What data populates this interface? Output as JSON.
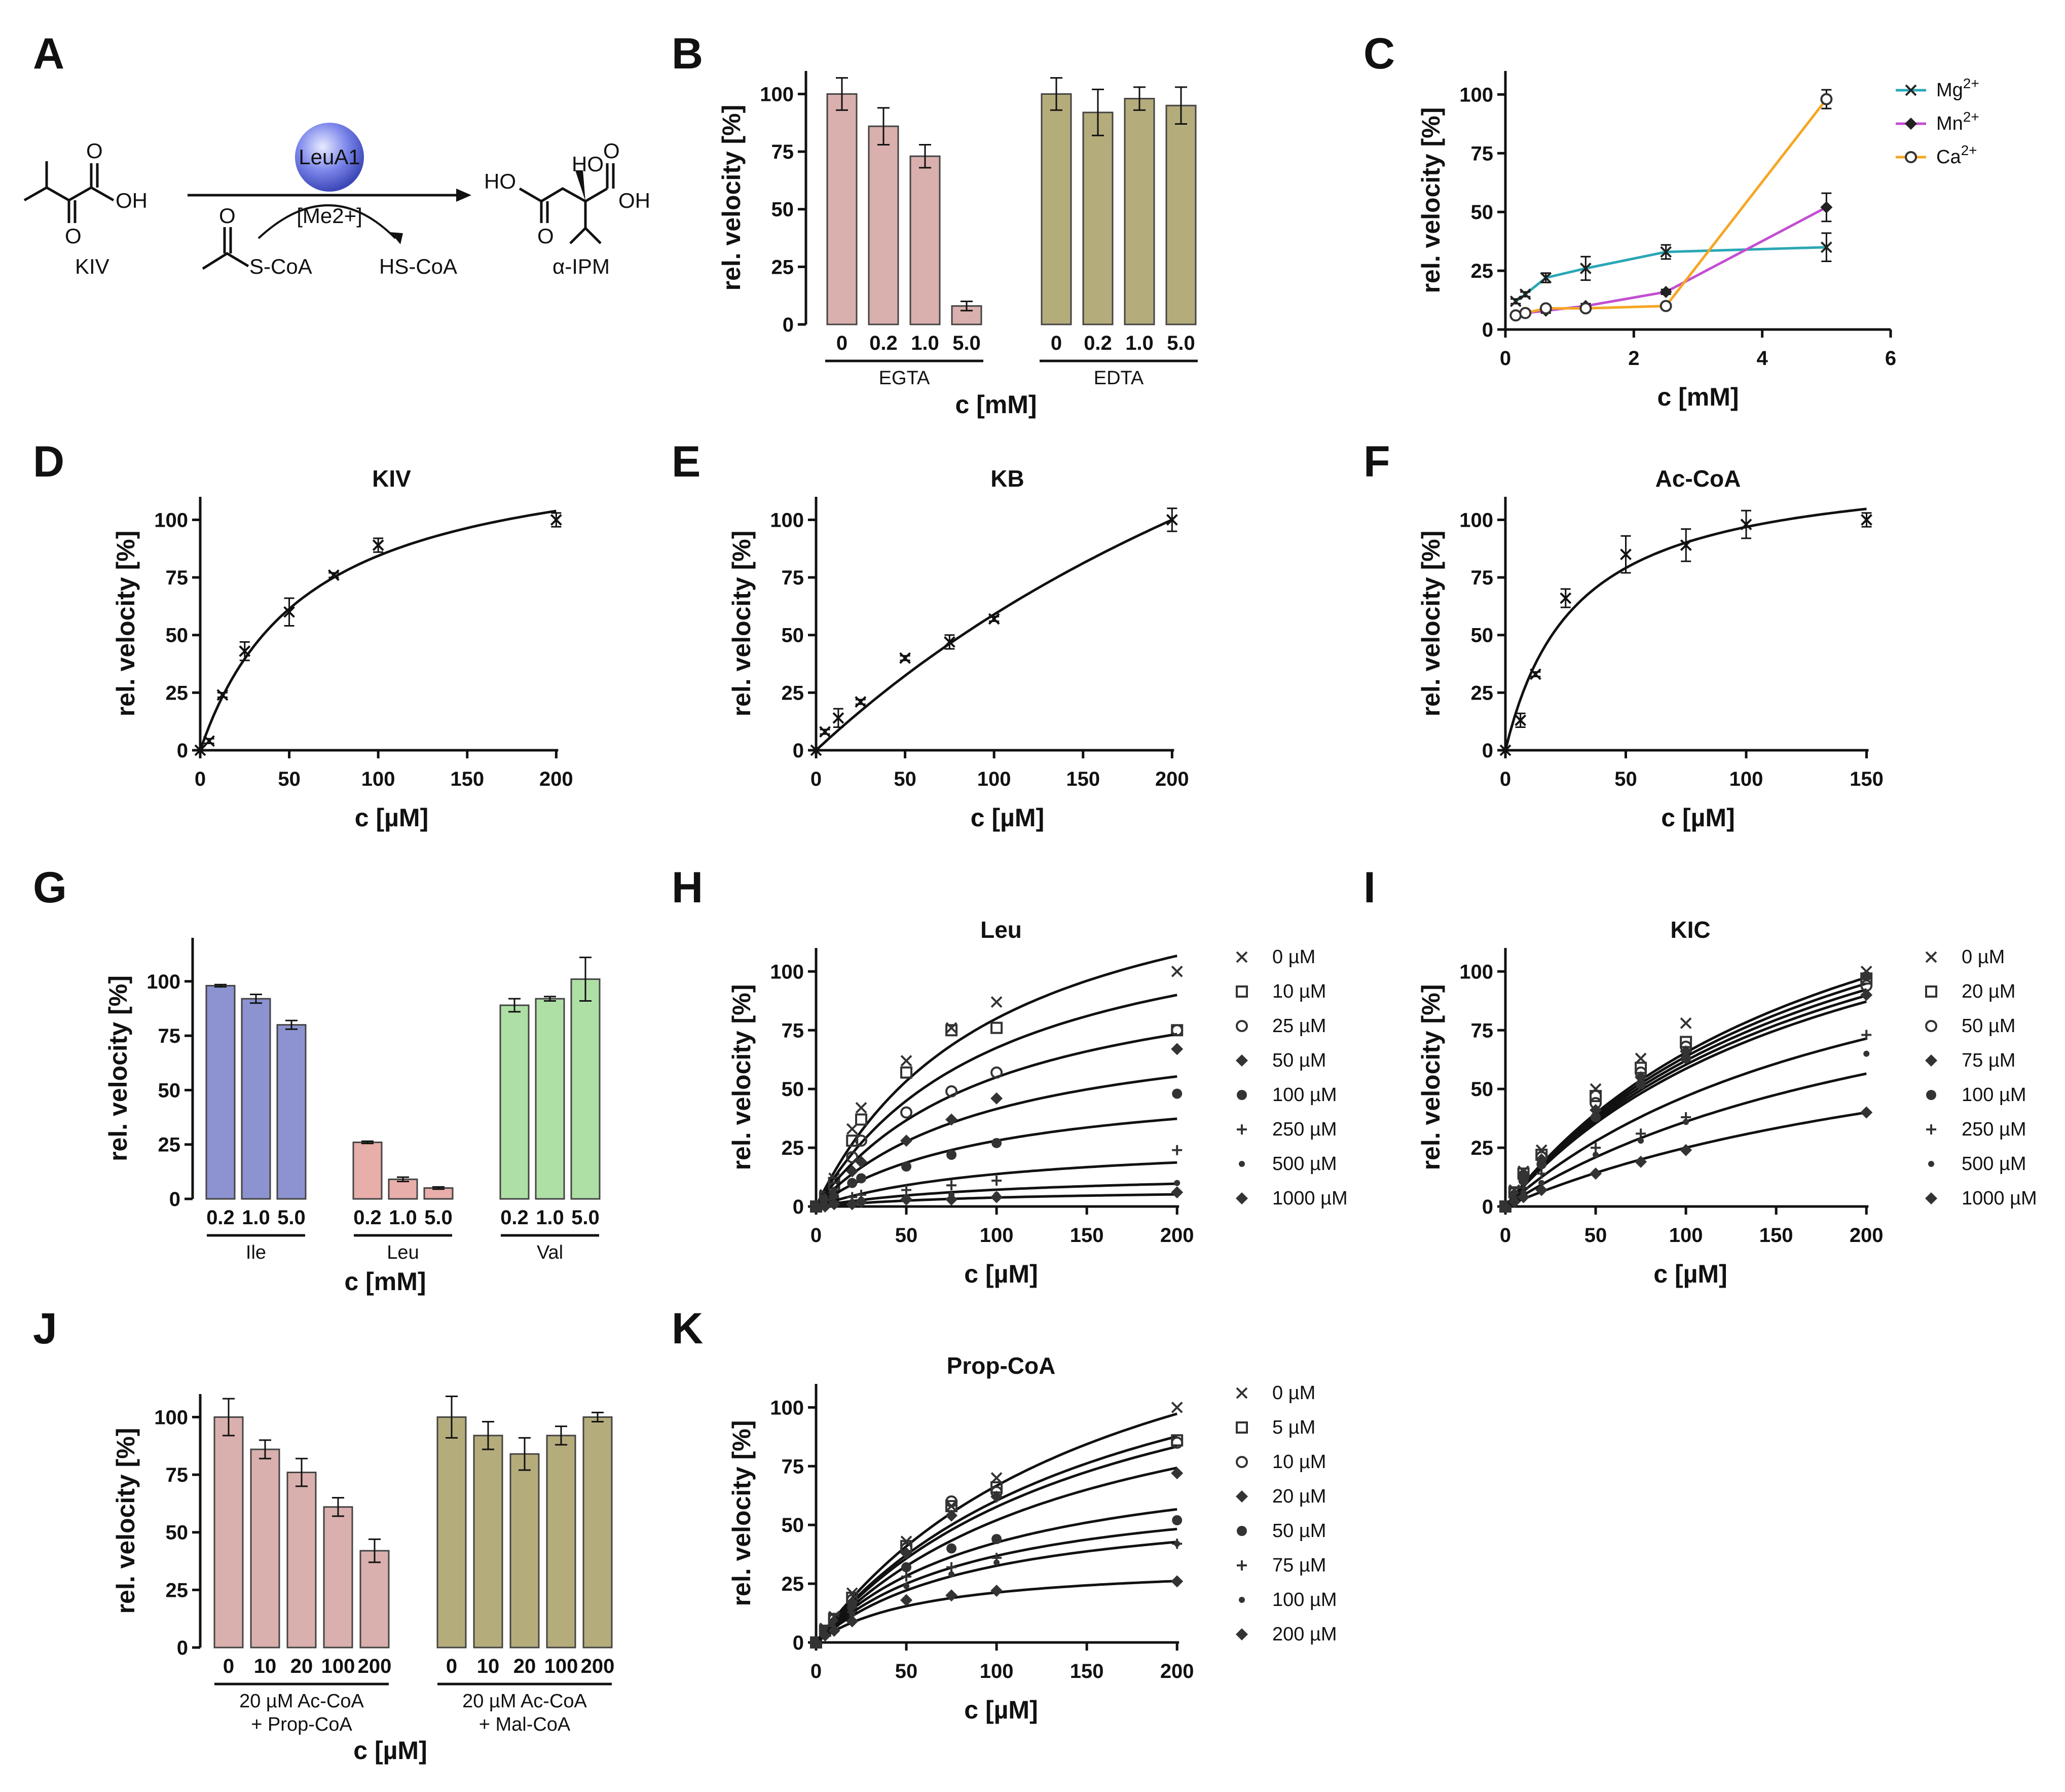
{
  "figure": {
    "scheme": {
      "label": "A",
      "enzyme": "LeuA1",
      "cofactor": "[Me2+]",
      "substrate": "KIV",
      "cosubstrate": "S-CoA",
      "byproduct": "HS-CoA",
      "product": "α-IPM",
      "atom_O": "O",
      "atom_OH": "OH",
      "atom_HO": "HO"
    }
  },
  "chart_data": [
    {
      "id": "B",
      "type": "bar",
      "ylabel": "rel. velocity [%]",
      "xlabel": "c [mM]",
      "ylim": [
        0,
        110
      ],
      "yticks": [
        0,
        25,
        50,
        75,
        100
      ],
      "groups": [
        {
          "name": "EGTA",
          "color": "#d9b0ad",
          "categories": [
            "0",
            "0.2",
            "1.0",
            "5.0"
          ],
          "values": [
            100,
            86,
            73,
            8
          ],
          "errors": [
            7,
            8,
            5,
            2
          ]
        },
        {
          "name": "EDTA",
          "color": "#b5ac7c",
          "categories": [
            "0",
            "0.2",
            "1.0",
            "5.0"
          ],
          "values": [
            100,
            92,
            98,
            95
          ],
          "errors": [
            7,
            10,
            5,
            8
          ]
        }
      ]
    },
    {
      "id": "C",
      "type": "line",
      "ylabel": "rel. velocity [%]",
      "xlabel": "c [mM]",
      "xlim": [
        0,
        6
      ],
      "ylim": [
        0,
        110
      ],
      "xticks": [
        0,
        2,
        4,
        6
      ],
      "yticks": [
        0,
        25,
        50,
        75,
        100
      ],
      "legend_position": "top-right",
      "series": [
        {
          "name": "Mg",
          "sup": "2+",
          "color": "#2aa7b5",
          "marker": "x",
          "x": [
            0.16,
            0.31,
            0.63,
            1.25,
            2.5,
            5.0
          ],
          "y": [
            12,
            15,
            22,
            26,
            33,
            35
          ],
          "err": [
            1,
            1,
            2,
            5,
            3,
            6
          ]
        },
        {
          "name": "Mn",
          "sup": "2+",
          "color": "#c24fd1",
          "marker": "diamond",
          "x": [
            0.16,
            0.31,
            0.63,
            1.25,
            2.5,
            5.0
          ],
          "y": [
            6,
            7,
            8,
            10,
            16,
            52
          ],
          "err": [
            1,
            1,
            1,
            1,
            1,
            6
          ]
        },
        {
          "name": "Ca",
          "sup": "2+",
          "color": "#f5a623",
          "marker": "circle",
          "x": [
            0.16,
            0.31,
            0.63,
            1.25,
            2.5,
            5.0
          ],
          "y": [
            6,
            7,
            9,
            9,
            10,
            98
          ],
          "err": [
            1,
            1,
            1,
            1,
            1,
            4
          ]
        }
      ]
    },
    {
      "id": "D",
      "type": "scatter",
      "title": "KIV",
      "ylabel": "rel. velocity [%]",
      "xlabel": "c [µM]",
      "xlim": [
        0,
        215
      ],
      "ylim": [
        0,
        110
      ],
      "xticks": [
        0,
        50,
        100,
        150,
        200
      ],
      "yticks": [
        0,
        25,
        50,
        75,
        100
      ],
      "points": {
        "x": [
          0,
          5,
          12.5,
          25,
          50,
          75,
          100,
          200
        ],
        "y": [
          0,
          4,
          24,
          43,
          60,
          76,
          89,
          100
        ],
        "err": [
          0,
          1,
          1,
          4,
          6,
          1,
          3,
          3
        ]
      },
      "fit": {
        "model": "michaelis-menten",
        "vmax": 135,
        "km": 60
      }
    },
    {
      "id": "E",
      "type": "scatter",
      "title": "KB",
      "ylabel": "rel. velocity [%]",
      "xlabel": "c [µM]",
      "xlim": [
        0,
        215
      ],
      "ylim": [
        0,
        110
      ],
      "xticks": [
        0,
        50,
        100,
        150,
        200
      ],
      "yticks": [
        0,
        25,
        50,
        75,
        100
      ],
      "points": {
        "x": [
          0,
          5,
          12.5,
          25,
          50,
          75,
          100,
          200
        ],
        "y": [
          0,
          8,
          14,
          21,
          40,
          47,
          57,
          100
        ],
        "err": [
          0,
          1,
          4,
          1,
          1,
          3,
          1,
          5
        ]
      },
      "fit": {
        "model": "michaelis-menten",
        "vmax": 330,
        "km": 460
      }
    },
    {
      "id": "F",
      "type": "scatter",
      "title": "Ac-CoA",
      "ylabel": "rel. velocity [%]",
      "xlabel": "c [µM]",
      "xlim": [
        0,
        160
      ],
      "ylim": [
        0,
        110
      ],
      "xticks": [
        0,
        50,
        100,
        150
      ],
      "yticks": [
        0,
        25,
        50,
        75,
        100
      ],
      "points": {
        "x": [
          0,
          6.25,
          12.5,
          25,
          50,
          75,
          100,
          150
        ],
        "y": [
          0,
          13,
          33,
          66,
          85,
          89,
          98,
          100
        ],
        "err": [
          0,
          3,
          1,
          4,
          8,
          7,
          6,
          3
        ]
      },
      "fit": {
        "model": "michaelis-menten",
        "vmax": 125,
        "km": 29
      }
    },
    {
      "id": "G",
      "type": "bar",
      "ylabel": "rel. velocity [%]",
      "xlabel": "c [mM]",
      "ylim": [
        0,
        120
      ],
      "yticks": [
        0,
        25,
        50,
        75,
        100
      ],
      "groups": [
        {
          "name": "Ile",
          "color": "#8c93d0",
          "categories": [
            "0.2",
            "1.0",
            "5.0"
          ],
          "values": [
            98,
            92,
            80
          ],
          "errors": [
            0.5,
            2,
            2
          ]
        },
        {
          "name": "Leu",
          "color": "#e8aeaa",
          "categories": [
            "0.2",
            "1.0",
            "5.0"
          ],
          "values": [
            26,
            9,
            5
          ],
          "errors": [
            0.5,
            1,
            0.5
          ]
        },
        {
          "name": "Val",
          "color": "#aee0a6",
          "categories": [
            "0.2",
            "1.0",
            "5.0"
          ],
          "values": [
            89,
            92,
            101
          ],
          "errors": [
            3,
            1,
            10
          ]
        }
      ]
    },
    {
      "id": "H",
      "type": "scatter",
      "title": "Leu",
      "ylabel": "rel. velocity [%]",
      "xlabel": "c [µM]",
      "xlim": [
        0,
        205
      ],
      "ylim": [
        0,
        110
      ],
      "xticks": [
        0,
        50,
        100,
        150,
        200
      ],
      "yticks": [
        0,
        25,
        50,
        75,
        100
      ],
      "x": [
        0,
        5,
        10,
        20,
        25,
        50,
        75,
        100,
        200
      ],
      "series": [
        {
          "name": "0 µM",
          "marker": "x",
          "y": [
            0,
            5,
            12,
            33,
            42,
            62,
            76,
            87,
            100
          ],
          "vmax": 160,
          "km": 100
        },
        {
          "name": "10 µM",
          "marker": "sq",
          "y": [
            0,
            4,
            10,
            28,
            37,
            57,
            75,
            76,
            75
          ],
          "vmax": 135,
          "km": 100
        },
        {
          "name": "25 µM",
          "marker": "circ",
          "y": [
            0,
            3,
            8,
            21,
            28,
            40,
            49,
            57,
            75
          ],
          "vmax": 110,
          "km": 100
        },
        {
          "name": "50 µM",
          "marker": "diamond",
          "y": [
            0,
            3,
            6,
            15,
            19,
            28,
            37,
            46,
            67
          ],
          "vmax": 83,
          "km": 100
        },
        {
          "name": "100 µM",
          "marker": "dot",
          "y": [
            0,
            2,
            4,
            10,
            12,
            17,
            22,
            27,
            48
          ],
          "vmax": 56,
          "km": 100
        },
        {
          "name": "250 µM",
          "marker": "plus",
          "y": [
            0,
            1,
            2,
            4,
            5,
            7,
            9,
            11,
            24
          ],
          "vmax": 29,
          "km": 110
        },
        {
          "name": "500 µM",
          "marker": "smalldot",
          "y": [
            0,
            1,
            1,
            2,
            3,
            4,
            5,
            5,
            10
          ],
          "vmax": 15,
          "km": 110
        },
        {
          "name": "1000 µM",
          "marker": "diamond",
          "y": [
            0,
            0,
            1,
            1,
            2,
            3,
            3,
            4,
            6
          ],
          "vmax": 8,
          "km": 110
        }
      ]
    },
    {
      "id": "I",
      "type": "scatter",
      "title": "KIC",
      "ylabel": "rel. velocity [%]",
      "xlabel": "c [µM]",
      "xlim": [
        0,
        205
      ],
      "ylim": [
        0,
        110
      ],
      "xticks": [
        0,
        50,
        100,
        150,
        200
      ],
      "yticks": [
        0,
        25,
        50,
        75,
        100
      ],
      "x": [
        0,
        5,
        10,
        20,
        50,
        75,
        100,
        200
      ],
      "series": [
        {
          "name": "0 µM",
          "marker": "x",
          "y": [
            0,
            7,
            15,
            24,
            50,
            63,
            78,
            100
          ],
          "vmax": 190,
          "km": 190
        },
        {
          "name": "20 µM",
          "marker": "sq",
          "y": [
            0,
            6,
            14,
            22,
            47,
            59,
            70,
            97
          ],
          "vmax": 185,
          "km": 190
        },
        {
          "name": "50 µM",
          "marker": "circ",
          "y": [
            0,
            6,
            13,
            21,
            44,
            57,
            68,
            94
          ],
          "vmax": 180,
          "km": 190
        },
        {
          "name": "75 µM",
          "marker": "diamond",
          "y": [
            0,
            5,
            12,
            20,
            41,
            55,
            66,
            90
          ],
          "vmax": 175,
          "km": 190
        },
        {
          "name": "100 µM",
          "marker": "dot",
          "y": [
            0,
            5,
            11,
            18,
            38,
            52,
            63,
            98
          ],
          "vmax": 170,
          "km": 190
        },
        {
          "name": "250 µM",
          "marker": "plus",
          "y": [
            0,
            4,
            8,
            14,
            25,
            31,
            38,
            73
          ],
          "vmax": 150,
          "km": 220
        },
        {
          "name": "500 µM",
          "marker": "smalldot",
          "y": [
            0,
            3,
            6,
            10,
            22,
            28,
            36,
            65
          ],
          "vmax": 130,
          "km": 260
        },
        {
          "name": "1000 µM",
          "marker": "diamond",
          "y": [
            0,
            2,
            4,
            7,
            14,
            19,
            24,
            40
          ],
          "vmax": 100,
          "km": 300
        }
      ]
    },
    {
      "id": "J",
      "type": "bar",
      "ylabel": "rel. velocity [%]",
      "xlabel": "c [µM]",
      "ylim": [
        0,
        110
      ],
      "yticks": [
        0,
        25,
        50,
        75,
        100
      ],
      "groups": [
        {
          "name": "20 µM Ac-CoA",
          "name2": "+ Prop-CoA",
          "color": "#d9b0ad",
          "categories": [
            "0",
            "10",
            "20",
            "100",
            "200"
          ],
          "values": [
            100,
            86,
            76,
            61,
            42
          ],
          "errors": [
            8,
            4,
            6,
            4,
            5
          ]
        },
        {
          "name": "20 µM Ac-CoA",
          "name2": "+ Mal-CoA",
          "color": "#b5ac7c",
          "categories": [
            "0",
            "10",
            "20",
            "100",
            "200"
          ],
          "values": [
            100,
            92,
            84,
            92,
            100
          ],
          "errors": [
            9,
            6,
            7,
            4,
            2
          ]
        }
      ]
    },
    {
      "id": "K",
      "type": "scatter",
      "title": "Prop-CoA",
      "ylabel": "rel. velocity [%]",
      "xlabel": "c [µM]",
      "xlim": [
        0,
        205
      ],
      "ylim": [
        0,
        110
      ],
      "xticks": [
        0,
        50,
        100,
        150,
        200
      ],
      "yticks": [
        0,
        25,
        50,
        75,
        100
      ],
      "x": [
        0,
        5,
        10,
        20,
        50,
        75,
        100,
        200
      ],
      "series": [
        {
          "name": "0 µM",
          "marker": "x",
          "y": [
            0,
            6,
            11,
            21,
            43,
            58,
            70,
            100
          ],
          "vmax": 180,
          "km": 170
        },
        {
          "name": "5 µM",
          "marker": "sq",
          "y": [
            0,
            5,
            10,
            19,
            41,
            58,
            66,
            86
          ],
          "vmax": 160,
          "km": 165
        },
        {
          "name": "10 µM",
          "marker": "circ",
          "y": [
            0,
            5,
            10,
            18,
            40,
            60,
            64,
            85
          ],
          "vmax": 150,
          "km": 160
        },
        {
          "name": "20 µM",
          "marker": "diamond",
          "y": [
            0,
            5,
            9,
            17,
            38,
            54,
            62,
            72
          ],
          "vmax": 130,
          "km": 150
        },
        {
          "name": "50 µM",
          "marker": "dot",
          "y": [
            0,
            4,
            8,
            15,
            32,
            40,
            44,
            52
          ],
          "vmax": 85,
          "km": 100
        },
        {
          "name": "75 µM",
          "marker": "plus",
          "y": [
            0,
            4,
            7,
            13,
            28,
            32,
            36,
            42
          ],
          "vmax": 70,
          "km": 90
        },
        {
          "name": "100 µM",
          "marker": "smalldot",
          "y": [
            0,
            3,
            6,
            12,
            24,
            29,
            34,
            42
          ],
          "vmax": 62,
          "km": 90
        },
        {
          "name": "200 µM",
          "marker": "diamond",
          "y": [
            0,
            3,
            5,
            9,
            18,
            20,
            22,
            26
          ],
          "vmax": 34,
          "km": 60
        }
      ]
    }
  ]
}
